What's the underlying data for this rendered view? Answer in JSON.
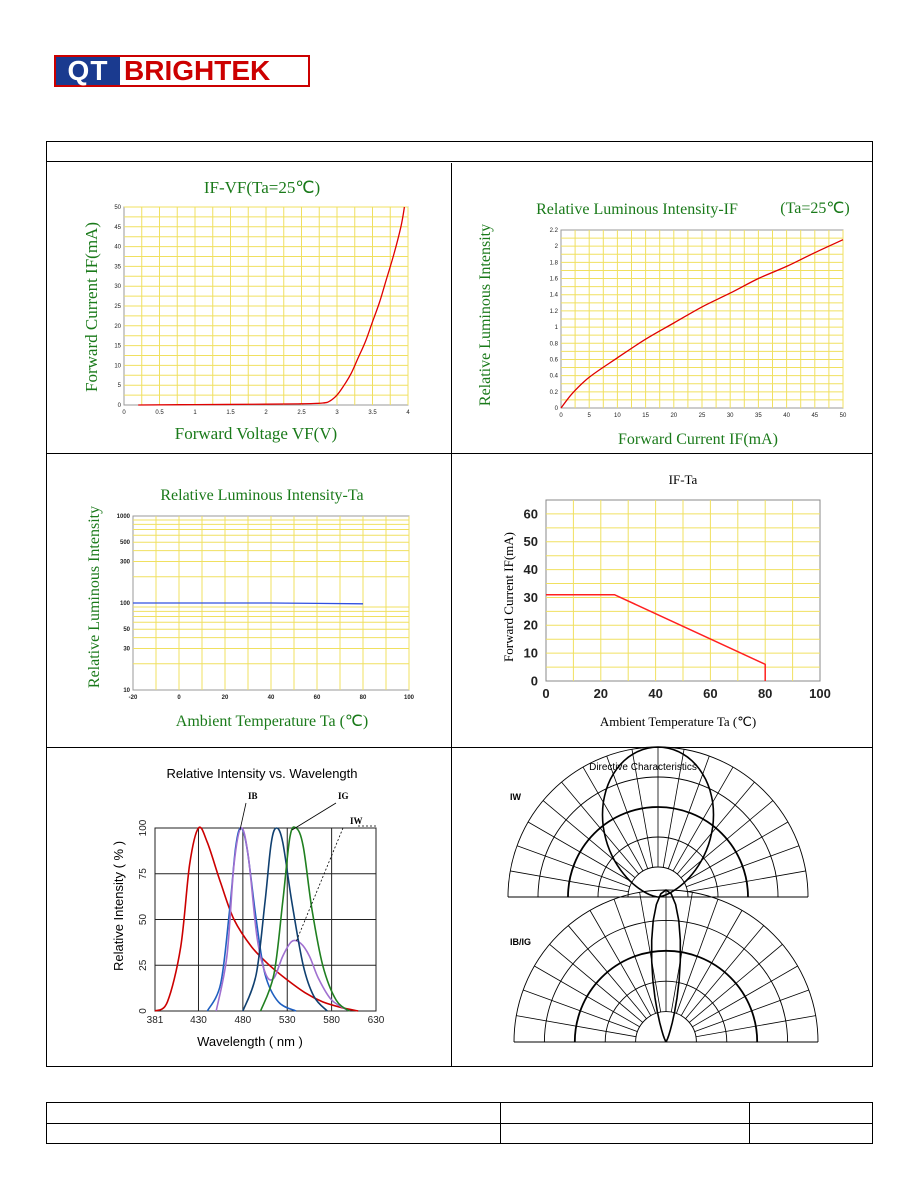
{
  "logo": {
    "left": "QT",
    "right": "BRIGHTEK"
  },
  "charts": [
    {
      "title": "IF-VF(Ta=25℃)",
      "xlabel": "Forward Voltage VF(V)",
      "ylabel": "Forward Current IF(mA)",
      "type": "line",
      "xticks": [
        "0",
        "0.5",
        "1",
        "1.5",
        "2",
        "2.5",
        "3",
        "3.5",
        "4"
      ],
      "yticks": [
        "0",
        "5",
        "10",
        "15",
        "20",
        "25",
        "30",
        "35",
        "40",
        "45",
        "50"
      ],
      "color": "#e00000"
    },
    {
      "title": "Relative Luminous Intensity-IF",
      "title_suffix": "(Ta=25℃)",
      "xlabel": "Forward Current IF(mA)",
      "ylabel": "Relative Luminous Intensity",
      "type": "line",
      "xticks": [
        "0",
        "5",
        "10",
        "15",
        "20",
        "25",
        "30",
        "35",
        "40",
        "45",
        "50"
      ],
      "yticks": [
        "0",
        "0.2",
        "0.4",
        "0.6",
        "0.8",
        "1",
        "1.2",
        "1.4",
        "1.6",
        "1.8",
        "2",
        "2.2"
      ],
      "color": "#e00000"
    },
    {
      "title": "Relative Luminous Intensity-Ta",
      "xlabel": "Ambient Temperature Ta (℃)",
      "ylabel": "Relative Luminous Intensity",
      "type": "line",
      "xticks": [
        "-20",
        "0",
        "20",
        "40",
        "60",
        "80",
        "100"
      ],
      "yticks": [
        "10",
        "30",
        "50",
        "100",
        "300",
        "500",
        "1000"
      ],
      "color": "#3050e0"
    },
    {
      "title": "IF-Ta",
      "xlabel": "Ambient Temperature Ta (℃)",
      "ylabel": "Forward Current IF(mA)",
      "type": "line",
      "xticks": [
        "0",
        "20",
        "40",
        "60",
        "80",
        "100"
      ],
      "yticks": [
        "0",
        "10",
        "20",
        "30",
        "40",
        "50",
        "60"
      ],
      "color": "#ff2020"
    },
    {
      "title": "Relative Intensity vs. Wavelength",
      "xlabel": "Wavelength ( nm )",
      "ylabel": "Relative Intensity ( % )",
      "type": "line",
      "xticks": [
        "381",
        "430",
        "480",
        "530",
        "580",
        "630"
      ],
      "yticks": [
        "0",
        "25",
        "50",
        "75",
        "100"
      ],
      "labels": [
        "IB",
        "IG",
        "IW"
      ]
    },
    {
      "title": "Directive Characteristics",
      "labels": [
        "IW",
        "IB/IG"
      ]
    }
  ],
  "chart_data": [
    {
      "type": "line",
      "title": "IF-VF(Ta=25℃)",
      "xlabel": "Forward Voltage VF(V)",
      "ylabel": "Forward Current IF(mA)",
      "xlim": [
        0,
        4
      ],
      "ylim": [
        0,
        50
      ],
      "series": [
        {
          "x": [
            0.2,
            1,
            2,
            2.5,
            2.8,
            2.9,
            3.0,
            3.1,
            3.2,
            3.3,
            3.4,
            3.5,
            3.6,
            3.7,
            3.8,
            3.9,
            3.95
          ],
          "y": [
            0,
            0.1,
            0.2,
            0.3,
            0.5,
            1,
            2.5,
            5,
            8,
            12,
            16,
            21,
            26,
            32,
            38,
            45,
            50
          ]
        }
      ]
    },
    {
      "type": "line",
      "title": "Relative Luminous Intensity-IF (Ta=25℃)",
      "xlabel": "Forward Current IF(mA)",
      "ylabel": "Relative Luminous Intensity",
      "xlim": [
        0,
        50
      ],
      "ylim": [
        0,
        2.2
      ],
      "series": [
        {
          "x": [
            0,
            2,
            5,
            10,
            15,
            20,
            25,
            30,
            35,
            40,
            45,
            50
          ],
          "y": [
            0,
            0.18,
            0.38,
            0.62,
            0.85,
            1.05,
            1.25,
            1.42,
            1.6,
            1.75,
            1.92,
            2.08
          ]
        }
      ]
    },
    {
      "type": "line",
      "title": "Relative Luminous Intensity-Ta",
      "xlabel": "Ambient Temperature Ta (℃)",
      "ylabel": "Relative Luminous Intensity",
      "xlim": [
        -20,
        100
      ],
      "ylim": [
        10,
        1000
      ],
      "yscale": "log",
      "series": [
        {
          "x": [
            -20,
            0,
            20,
            40,
            60,
            80
          ],
          "y": [
            100,
            100,
            100,
            100,
            99,
            98
          ]
        }
      ]
    },
    {
      "type": "line",
      "title": "IF-Ta",
      "xlabel": "Ambient Temperature Ta (℃)",
      "ylabel": "Forward Current IF(mA)",
      "xlim": [
        0,
        100
      ],
      "ylim": [
        0,
        65
      ],
      "series": [
        {
          "x": [
            0,
            25,
            80,
            80
          ],
          "y": [
            31,
            31,
            6,
            0
          ]
        }
      ]
    },
    {
      "type": "line",
      "title": "Relative Intensity vs. Wavelength",
      "xlabel": "Wavelength ( nm )",
      "ylabel": "Relative Intensity ( % )",
      "xlim": [
        381,
        630
      ],
      "ylim": [
        0,
        100
      ],
      "series": [
        {
          "color": "#cc0000",
          "x": [
            381,
            395,
            410,
            420,
            430,
            440,
            455,
            470,
            490,
            510,
            530,
            550,
            570,
            590,
            610
          ],
          "y": [
            0,
            5,
            35,
            80,
            100,
            92,
            70,
            50,
            35,
            25,
            17,
            10,
            5,
            2,
            0
          ]
        },
        {
          "name": "IB",
          "color": "#2060c0",
          "x": [
            440,
            455,
            465,
            472,
            478,
            485,
            495,
            505,
            520,
            540
          ],
          "y": [
            0,
            15,
            55,
            90,
            100,
            88,
            50,
            20,
            5,
            0
          ]
        },
        {
          "color": "#a070d0",
          "x": [
            450,
            462,
            470,
            478,
            486,
            496,
            506,
            515,
            525,
            535,
            545,
            555,
            565,
            580,
            600
          ],
          "y": [
            0,
            30,
            80,
            100,
            85,
            40,
            20,
            18,
            30,
            38,
            37,
            30,
            18,
            6,
            0
          ]
        },
        {
          "color": "#104070",
          "x": [
            480,
            495,
            505,
            512,
            518,
            525,
            535,
            548,
            560,
            575
          ],
          "y": [
            0,
            20,
            60,
            92,
            100,
            92,
            60,
            25,
            8,
            0
          ]
        },
        {
          "name": "IG",
          "color": "#208020",
          "x": [
            500,
            515,
            525,
            533,
            540,
            548,
            558,
            570,
            585,
            600
          ],
          "y": [
            0,
            20,
            60,
            95,
            100,
            90,
            55,
            25,
            6,
            0
          ]
        }
      ]
    },
    {
      "type": "polar",
      "title": "Directive Characteristics",
      "series": [
        {
          "name": "IW"
        },
        {
          "name": "IB/IG"
        }
      ]
    }
  ]
}
